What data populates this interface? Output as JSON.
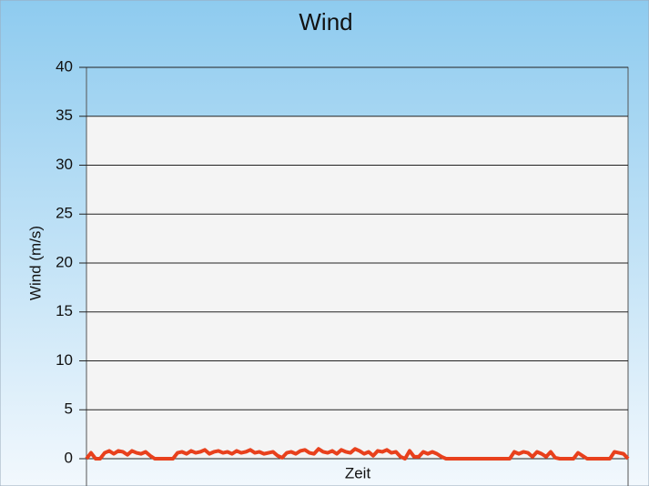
{
  "chart_data": {
    "type": "line",
    "title": "Wind",
    "ylabel": "Wind (m/s)",
    "xlabel": "Zeit",
    "series": [
      {
        "color": "#e8401c",
        "values": [
          0,
          0.6,
          0,
          0,
          0.6,
          0.8,
          0.5,
          0.8,
          0.7,
          0.4,
          0.8,
          0.6,
          0.5,
          0.7,
          0.3,
          0,
          0,
          0,
          0,
          0,
          0.6,
          0.7,
          0.5,
          0.8,
          0.6,
          0.7,
          0.9,
          0.5,
          0.7,
          0.8,
          0.6,
          0.7,
          0.5,
          0.8,
          0.6,
          0.7,
          0.9,
          0.6,
          0.7,
          0.5,
          0.6,
          0.7,
          0.3,
          0.1,
          0.6,
          0.7,
          0.5,
          0.8,
          0.9,
          0.6,
          0.5,
          1.0,
          0.7,
          0.6,
          0.8,
          0.5,
          0.9,
          0.7,
          0.6,
          1.0,
          0.8,
          0.5,
          0.7,
          0.3,
          0.8,
          0.7,
          0.9,
          0.6,
          0.7,
          0.2,
          0,
          0.8,
          0.2,
          0.2,
          0.7,
          0.5,
          0.7,
          0.5,
          0.2,
          0,
          0,
          0,
          0,
          0,
          0,
          0,
          0,
          0,
          0,
          0,
          0,
          0,
          0,
          0,
          0.7,
          0.5,
          0.7,
          0.6,
          0.2,
          0.7,
          0.5,
          0.2,
          0.7,
          0.1,
          0,
          0,
          0,
          0,
          0.6,
          0.3,
          0,
          0,
          0,
          0,
          0,
          0,
          0.7,
          0.6,
          0.5,
          0
        ]
      }
    ],
    "ylim": [
      0,
      40
    ],
    "yticks": [
      0,
      5,
      10,
      15,
      20,
      25,
      30,
      35,
      40
    ],
    "grid": true
  }
}
